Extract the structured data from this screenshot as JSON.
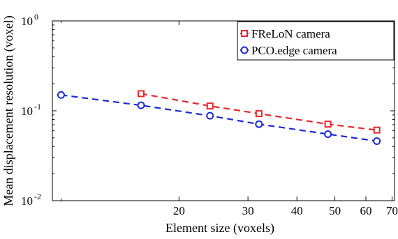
{
  "chart_data": {
    "type": "line",
    "xlabel": "Element size (voxels)",
    "ylabel": "Mean displacement resolution (voxel)",
    "xscale": "log",
    "yscale": "log",
    "xlim": [
      9.5,
      71
    ],
    "ylim": [
      0.01,
      1
    ],
    "x_ticks": [
      {
        "value": 20,
        "label": "20"
      },
      {
        "value": 30,
        "label": "30"
      },
      {
        "value": 40,
        "label": "40"
      },
      {
        "value": 50,
        "label": "50"
      },
      {
        "value": 60,
        "label": "60"
      },
      {
        "value": 70,
        "label": "70"
      }
    ],
    "y_ticks": [
      {
        "value": 0.01,
        "base": "10",
        "exp": "-2"
      },
      {
        "value": 0.1,
        "base": "10",
        "exp": "-1"
      },
      {
        "value": 1,
        "base": "10",
        "exp": "0"
      }
    ],
    "grid": false,
    "legend_position": "top-right",
    "series": [
      {
        "name": "FReLoN camera",
        "color": "#e8262a",
        "marker": "square",
        "line_style": "dashed",
        "x": [
          16,
          24,
          32,
          48,
          64
        ],
        "y": [
          0.155,
          0.113,
          0.093,
          0.071,
          0.061
        ]
      },
      {
        "name": "PCO.edge camera",
        "color": "#1a2bd6",
        "marker": "circle",
        "line_style": "dashed",
        "x": [
          10,
          16,
          24,
          32,
          48,
          64
        ],
        "y": [
          0.15,
          0.115,
          0.088,
          0.071,
          0.055,
          0.046
        ]
      }
    ]
  }
}
